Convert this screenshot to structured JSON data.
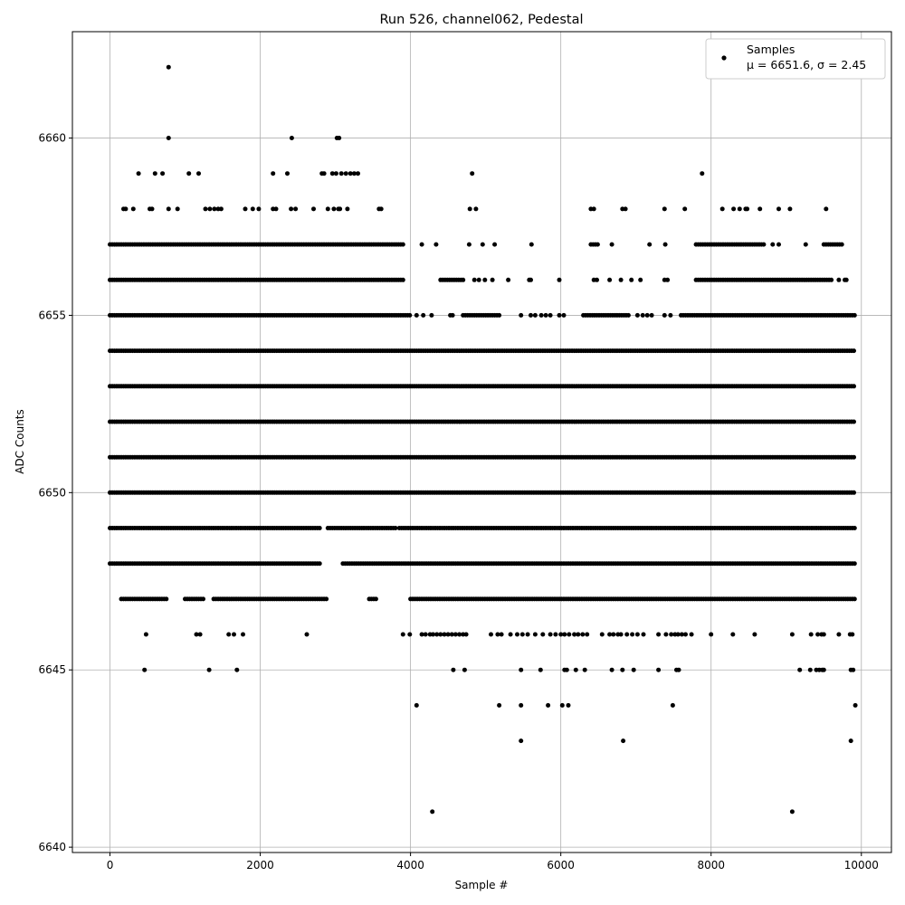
{
  "chart_data": {
    "type": "scatter",
    "title": "Run 526, channel062, Pedestal",
    "xlabel": "Sample #",
    "ylabel": "ADC Counts",
    "xlim": [
      -500,
      10400
    ],
    "ylim": [
      6639.85,
      6663.0
    ],
    "xticks": [
      0,
      2000,
      4000,
      6000,
      8000,
      10000
    ],
    "yticks": [
      6640,
      6645,
      6650,
      6655,
      6660
    ],
    "grid": true,
    "legend_position": "top-right",
    "marker_color": "#000000",
    "series": [
      {
        "name": "Samples",
        "legend_line2": "μ = 6651.6, σ = 2.45",
        "dense_rows": [
          {
            "y": 6647,
            "x_ranges": [
              [
                150,
                760
              ],
              [
                1000,
                1250
              ],
              [
                1380,
                2900
              ],
              [
                3450,
                3560
              ],
              [
                4000,
                9920
              ]
            ]
          },
          {
            "y": 6648,
            "x_ranges": [
              [
                0,
                2800
              ],
              [
                3100,
                9920
              ]
            ]
          },
          {
            "y": 6649,
            "x_ranges": [
              [
                0,
                2800
              ],
              [
                2900,
                3800
              ],
              [
                3850,
                9920
              ]
            ]
          },
          {
            "y": 6650,
            "x_ranges": [
              [
                0,
                9920
              ]
            ]
          },
          {
            "y": 6651,
            "x_ranges": [
              [
                0,
                9920
              ]
            ]
          },
          {
            "y": 6652,
            "x_ranges": [
              [
                0,
                9920
              ]
            ]
          },
          {
            "y": 6653,
            "x_ranges": [
              [
                0,
                9920
              ]
            ]
          },
          {
            "y": 6654,
            "x_ranges": [
              [
                0,
                9920
              ]
            ]
          },
          {
            "y": 6655,
            "x_ranges": [
              [
                0,
                4000
              ],
              [
                4700,
                5200
              ],
              [
                6300,
                6900
              ],
              [
                7600,
                9920
              ]
            ]
          },
          {
            "y": 6656,
            "x_ranges": [
              [
                0,
                3900
              ],
              [
                4400,
                4700
              ],
              [
                7800,
                9600
              ]
            ]
          },
          {
            "y": 6657,
            "x_ranges": [
              [
                0,
                3900
              ],
              [
                6400,
                6500
              ],
              [
                7800,
                8700
              ],
              [
                9500,
                9750
              ]
            ]
          }
        ],
        "points": [
          [
            780,
            6662
          ],
          [
            780,
            6660
          ],
          [
            2420,
            6660
          ],
          [
            3020,
            6660
          ],
          [
            3050,
            6660
          ],
          [
            380,
            6659
          ],
          [
            600,
            6659
          ],
          [
            700,
            6659
          ],
          [
            1050,
            6659
          ],
          [
            1180,
            6659
          ],
          [
            2170,
            6659
          ],
          [
            2360,
            6659
          ],
          [
            2820,
            6659
          ],
          [
            2850,
            6659
          ],
          [
            2960,
            6659
          ],
          [
            3010,
            6659
          ],
          [
            3080,
            6659
          ],
          [
            3140,
            6659
          ],
          [
            3200,
            6659
          ],
          [
            3250,
            6659
          ],
          [
            3300,
            6659
          ],
          [
            4820,
            6659
          ],
          [
            7880,
            6659
          ],
          [
            180,
            6658
          ],
          [
            210,
            6658
          ],
          [
            310,
            6658
          ],
          [
            530,
            6658
          ],
          [
            560,
            6658
          ],
          [
            780,
            6658
          ],
          [
            900,
            6658
          ],
          [
            1270,
            6658
          ],
          [
            1330,
            6658
          ],
          [
            1390,
            6658
          ],
          [
            1440,
            6658
          ],
          [
            1480,
            6658
          ],
          [
            1800,
            6658
          ],
          [
            1900,
            6658
          ],
          [
            1980,
            6658
          ],
          [
            2170,
            6658
          ],
          [
            2210,
            6658
          ],
          [
            2410,
            6658
          ],
          [
            2470,
            6658
          ],
          [
            2710,
            6658
          ],
          [
            2900,
            6658
          ],
          [
            2980,
            6658
          ],
          [
            3040,
            6658
          ],
          [
            3060,
            6658
          ],
          [
            3160,
            6658
          ],
          [
            3580,
            6658
          ],
          [
            3610,
            6658
          ],
          [
            4790,
            6658
          ],
          [
            4870,
            6658
          ],
          [
            6400,
            6658
          ],
          [
            6440,
            6658
          ],
          [
            6820,
            6658
          ],
          [
            6860,
            6658
          ],
          [
            7380,
            6658
          ],
          [
            7650,
            6658
          ],
          [
            8150,
            6658
          ],
          [
            8300,
            6658
          ],
          [
            8380,
            6658
          ],
          [
            8460,
            6658
          ],
          [
            8480,
            6658
          ],
          [
            8650,
            6658
          ],
          [
            8900,
            6658
          ],
          [
            9050,
            6658
          ],
          [
            9530,
            6658
          ],
          [
            4150,
            6657
          ],
          [
            4340,
            6657
          ],
          [
            4780,
            6657
          ],
          [
            4960,
            6657
          ],
          [
            5120,
            6657
          ],
          [
            5610,
            6657
          ],
          [
            6680,
            6657
          ],
          [
            7180,
            6657
          ],
          [
            7390,
            6657
          ],
          [
            8820,
            6657
          ],
          [
            8900,
            6657
          ],
          [
            9260,
            6657
          ],
          [
            4850,
            6656
          ],
          [
            4910,
            6656
          ],
          [
            4990,
            6656
          ],
          [
            5090,
            6656
          ],
          [
            5300,
            6656
          ],
          [
            5580,
            6656
          ],
          [
            5600,
            6656
          ],
          [
            5980,
            6656
          ],
          [
            6440,
            6656
          ],
          [
            6480,
            6656
          ],
          [
            6650,
            6656
          ],
          [
            6800,
            6656
          ],
          [
            6940,
            6656
          ],
          [
            7060,
            6656
          ],
          [
            7380,
            6656
          ],
          [
            7420,
            6656
          ],
          [
            9700,
            6656
          ],
          [
            9780,
            6656
          ],
          [
            9800,
            6656
          ],
          [
            4080,
            6655
          ],
          [
            4170,
            6655
          ],
          [
            4280,
            6655
          ],
          [
            4530,
            6655
          ],
          [
            4560,
            6655
          ],
          [
            5470,
            6655
          ],
          [
            5600,
            6655
          ],
          [
            5660,
            6655
          ],
          [
            5740,
            6655
          ],
          [
            5800,
            6655
          ],
          [
            5860,
            6655
          ],
          [
            5980,
            6655
          ],
          [
            6040,
            6655
          ],
          [
            7020,
            6655
          ],
          [
            7090,
            6655
          ],
          [
            7150,
            6655
          ],
          [
            7210,
            6655
          ],
          [
            7380,
            6655
          ],
          [
            7460,
            6655
          ],
          [
            480,
            6646
          ],
          [
            1150,
            6646
          ],
          [
            1200,
            6646
          ],
          [
            1580,
            6646
          ],
          [
            1650,
            6646
          ],
          [
            1770,
            6646
          ],
          [
            2620,
            6646
          ],
          [
            3900,
            6646
          ],
          [
            3990,
            6646
          ],
          [
            4150,
            6646
          ],
          [
            4200,
            6646
          ],
          [
            4260,
            6646
          ],
          [
            4300,
            6646
          ],
          [
            4350,
            6646
          ],
          [
            4400,
            6646
          ],
          [
            4450,
            6646
          ],
          [
            4500,
            6646
          ],
          [
            4550,
            6646
          ],
          [
            4600,
            6646
          ],
          [
            4650,
            6646
          ],
          [
            4700,
            6646
          ],
          [
            4740,
            6646
          ],
          [
            5070,
            6646
          ],
          [
            5160,
            6646
          ],
          [
            5210,
            6646
          ],
          [
            5330,
            6646
          ],
          [
            5420,
            6646
          ],
          [
            5490,
            6646
          ],
          [
            5560,
            6646
          ],
          [
            5660,
            6646
          ],
          [
            5760,
            6646
          ],
          [
            5860,
            6646
          ],
          [
            5930,
            6646
          ],
          [
            6000,
            6646
          ],
          [
            6050,
            6646
          ],
          [
            6110,
            6646
          ],
          [
            6180,
            6646
          ],
          [
            6230,
            6646
          ],
          [
            6290,
            6646
          ],
          [
            6350,
            6646
          ],
          [
            6550,
            6646
          ],
          [
            6650,
            6646
          ],
          [
            6700,
            6646
          ],
          [
            6760,
            6646
          ],
          [
            6800,
            6646
          ],
          [
            6880,
            6646
          ],
          [
            6950,
            6646
          ],
          [
            7020,
            6646
          ],
          [
            7100,
            6646
          ],
          [
            7300,
            6646
          ],
          [
            7400,
            6646
          ],
          [
            7470,
            6646
          ],
          [
            7520,
            6646
          ],
          [
            7560,
            6646
          ],
          [
            7610,
            6646
          ],
          [
            7660,
            6646
          ],
          [
            7740,
            6646
          ],
          [
            8000,
            6646
          ],
          [
            8290,
            6646
          ],
          [
            8580,
            6646
          ],
          [
            9080,
            6646
          ],
          [
            9330,
            6646
          ],
          [
            9420,
            6646
          ],
          [
            9470,
            6646
          ],
          [
            9500,
            6646
          ],
          [
            9700,
            6646
          ],
          [
            9850,
            6646
          ],
          [
            9880,
            6646
          ],
          [
            460,
            6645
          ],
          [
            1320,
            6645
          ],
          [
            1690,
            6645
          ],
          [
            4570,
            6645
          ],
          [
            4720,
            6645
          ],
          [
            5470,
            6645
          ],
          [
            5730,
            6645
          ],
          [
            6050,
            6645
          ],
          [
            6080,
            6645
          ],
          [
            6200,
            6645
          ],
          [
            6320,
            6645
          ],
          [
            6680,
            6645
          ],
          [
            6820,
            6645
          ],
          [
            6970,
            6645
          ],
          [
            7300,
            6645
          ],
          [
            7540,
            6645
          ],
          [
            7570,
            6645
          ],
          [
            9180,
            6645
          ],
          [
            9320,
            6645
          ],
          [
            9400,
            6645
          ],
          [
            9440,
            6645
          ],
          [
            9480,
            6645
          ],
          [
            9500,
            6645
          ],
          [
            9860,
            6645
          ],
          [
            9890,
            6645
          ],
          [
            4080,
            6644
          ],
          [
            5180,
            6644
          ],
          [
            5470,
            6644
          ],
          [
            5830,
            6644
          ],
          [
            6020,
            6644
          ],
          [
            6100,
            6644
          ],
          [
            7490,
            6644
          ],
          [
            9920,
            6644
          ],
          [
            5470,
            6643
          ],
          [
            6830,
            6643
          ],
          [
            9860,
            6643
          ],
          [
            4290,
            6641
          ],
          [
            9080,
            6641
          ]
        ]
      }
    ]
  }
}
